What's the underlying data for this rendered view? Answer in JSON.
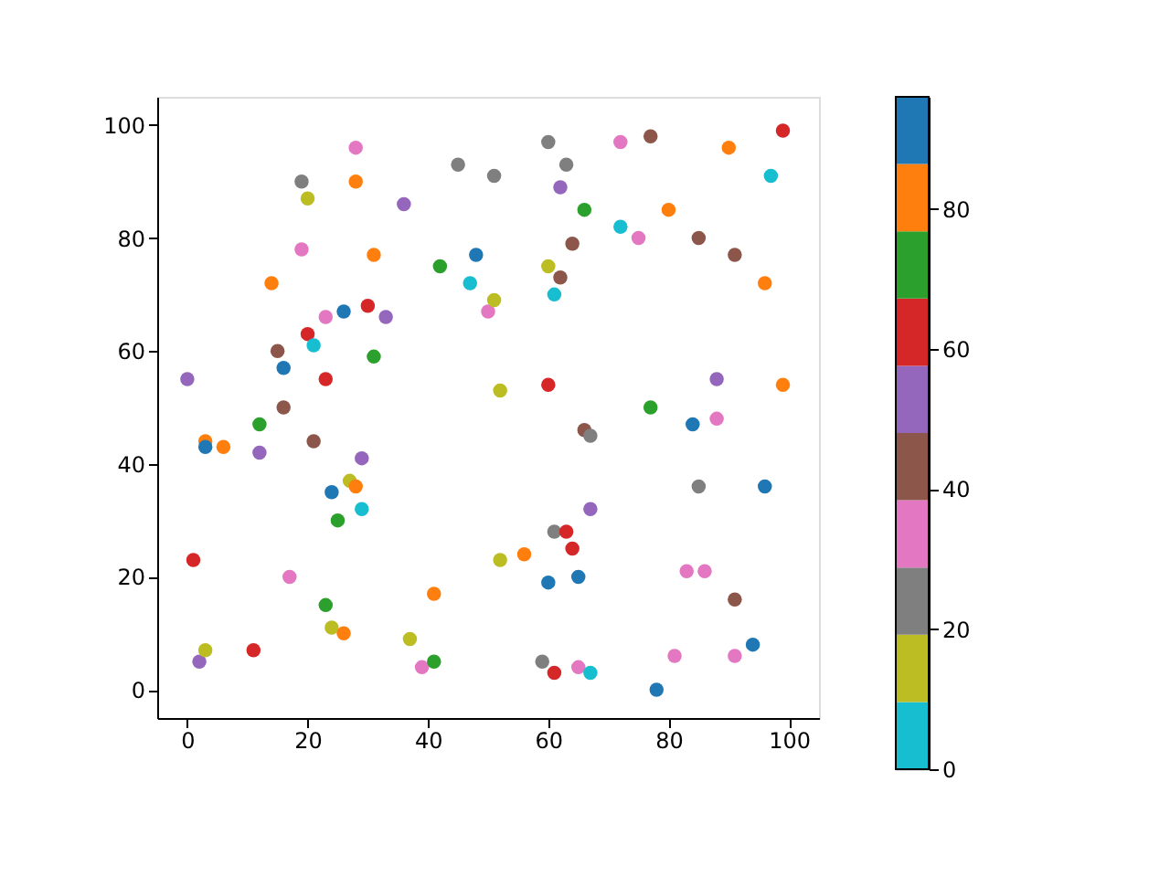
{
  "chart_data": {
    "type": "scatter",
    "marker": "circle",
    "grid": false,
    "xlim": [
      -5,
      105
    ],
    "ylim": [
      -5,
      105
    ],
    "xticks": [
      0,
      20,
      40,
      60,
      80,
      100
    ],
    "yticks": [
      0,
      20,
      40,
      60,
      80,
      100
    ],
    "clim": [
      0,
      96
    ],
    "cticks": [
      0,
      20,
      40,
      60,
      80
    ],
    "x": [
      0,
      1,
      2,
      3,
      3,
      3,
      6,
      12,
      12,
      11,
      14,
      15,
      16,
      16,
      17,
      19,
      19,
      20,
      20,
      21,
      21,
      23,
      23,
      23,
      24,
      24,
      25,
      26,
      26,
      27,
      28,
      28,
      28,
      29,
      29,
      30,
      31,
      31,
      33,
      36,
      37,
      39,
      41,
      41,
      42,
      45,
      47,
      48,
      50,
      51,
      51,
      52,
      52,
      56,
      59,
      60,
      60,
      60,
      60,
      61,
      61,
      61,
      62,
      62,
      63,
      63,
      64,
      64,
      65,
      65,
      66,
      66,
      67,
      67,
      67,
      72,
      72,
      75,
      77,
      77,
      78,
      80,
      81,
      83,
      84,
      85,
      85,
      86,
      88,
      88,
      90,
      91,
      91,
      91,
      94,
      96,
      96,
      97,
      99,
      99
    ],
    "values": [
      55,
      23,
      5,
      44,
      43,
      7,
      43,
      47,
      42,
      7,
      72,
      60,
      57,
      50,
      20,
      90,
      78,
      87,
      63,
      61,
      44,
      66,
      55,
      15,
      35,
      11,
      30,
      10,
      67,
      37,
      36,
      90,
      96,
      41,
      32,
      68,
      77,
      59,
      66,
      86,
      9,
      4,
      17,
      5,
      75,
      93,
      72,
      77,
      67,
      69,
      91,
      53,
      23,
      24,
      5,
      97,
      75,
      54,
      19,
      28,
      3,
      70,
      73,
      89,
      93,
      28,
      25,
      79,
      20,
      4,
      85,
      46,
      45,
      32,
      3,
      97,
      82,
      80,
      50,
      98,
      0,
      85,
      6,
      21,
      47,
      80,
      36,
      21,
      55,
      48,
      96,
      77,
      16,
      6,
      8,
      72,
      36,
      91,
      99,
      54
    ],
    "cvalues": [
      53,
      62,
      53,
      82,
      91,
      14,
      82,
      72,
      53,
      62,
      82,
      43,
      91,
      43,
      34,
      24,
      34,
      14,
      62,
      5,
      43,
      34,
      62,
      72,
      91,
      14,
      72,
      82,
      91,
      14,
      82,
      82,
      34,
      53,
      5,
      62,
      82,
      72,
      53,
      53,
      14,
      34,
      82,
      72,
      72,
      24,
      5,
      91,
      34,
      14,
      24,
      14,
      14,
      82,
      24,
      24,
      14,
      62,
      91,
      24,
      62,
      5,
      43,
      53,
      24,
      62,
      62,
      43,
      91,
      34,
      72,
      43,
      24,
      53,
      5,
      34,
      5,
      34,
      72,
      43,
      91,
      82,
      34,
      34,
      91,
      43,
      24,
      34,
      53,
      34,
      82,
      43,
      43,
      34,
      91,
      82,
      91,
      5,
      62,
      82
    ],
    "colors": [
      "#9467bd",
      "#d62728",
      "#9467bd",
      "#ff7f0e",
      "#1f77b4",
      "#bcbd22",
      "#ff7f0e",
      "#2ca02c",
      "#9467bd",
      "#d62728",
      "#ff7f0e",
      "#8c564b",
      "#1f77b4",
      "#8c564b",
      "#e377c2",
      "#7f7f7f",
      "#e377c2",
      "#bcbd22",
      "#d62728",
      "#17becf",
      "#8c564b",
      "#e377c2",
      "#d62728",
      "#2ca02c",
      "#1f77b4",
      "#bcbd22",
      "#2ca02c",
      "#ff7f0e",
      "#1f77b4",
      "#bcbd22",
      "#ff7f0e",
      "#ff7f0e",
      "#e377c2",
      "#9467bd",
      "#17becf",
      "#d62728",
      "#ff7f0e",
      "#2ca02c",
      "#9467bd",
      "#9467bd",
      "#bcbd22",
      "#e377c2",
      "#ff7f0e",
      "#2ca02c",
      "#2ca02c",
      "#7f7f7f",
      "#17becf",
      "#1f77b4",
      "#e377c2",
      "#bcbd22",
      "#7f7f7f",
      "#bcbd22",
      "#bcbd22",
      "#ff7f0e",
      "#7f7f7f",
      "#7f7f7f",
      "#bcbd22",
      "#d62728",
      "#1f77b4",
      "#7f7f7f",
      "#d62728",
      "#17becf",
      "#8c564b",
      "#9467bd",
      "#7f7f7f",
      "#d62728",
      "#d62728",
      "#8c564b",
      "#1f77b4",
      "#e377c2",
      "#2ca02c",
      "#8c564b",
      "#7f7f7f",
      "#9467bd",
      "#17becf",
      "#e377c2",
      "#17becf",
      "#e377c2",
      "#2ca02c",
      "#8c564b",
      "#1f77b4",
      "#ff7f0e",
      "#e377c2",
      "#e377c2",
      "#1f77b4",
      "#8c564b",
      "#7f7f7f",
      "#e377c2",
      "#9467bd",
      "#e377c2",
      "#ff7f0e",
      "#8c564b",
      "#8c564b",
      "#e377c2",
      "#1f77b4",
      "#ff7f0e",
      "#1f77b4",
      "#17becf",
      "#d62728",
      "#ff7f0e"
    ]
  }
}
